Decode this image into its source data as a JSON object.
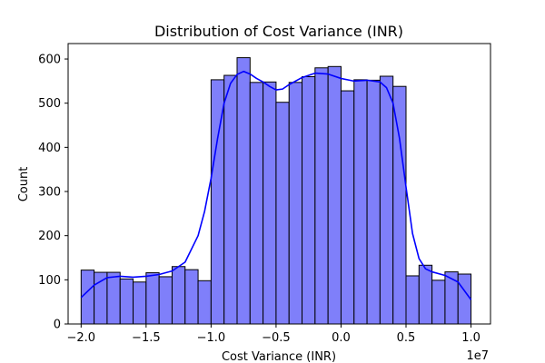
{
  "chart_data": {
    "type": "bar",
    "title": "Distribution of Cost Variance (INR)",
    "xlabel": "Cost Variance (INR)",
    "ylabel": "Count",
    "x_scale_label": "1e7",
    "xlim": [
      -2.1,
      1.15
    ],
    "ylim": [
      0,
      635
    ],
    "x_ticks": [
      -2.0,
      -1.5,
      -1.0,
      -0.5,
      0.0,
      0.5,
      1.0
    ],
    "x_tick_labels": [
      "−2.0",
      "−1.5",
      "−1.0",
      "−0.5",
      "0.0",
      "0.5",
      "1.0"
    ],
    "y_ticks": [
      0,
      100,
      200,
      300,
      400,
      500,
      600
    ],
    "y_tick_labels": [
      "0",
      "100",
      "200",
      "300",
      "400",
      "500",
      "600"
    ],
    "grid": false,
    "bin_start": -2.0,
    "bin_width": 0.1,
    "values": [
      122,
      117,
      117,
      102,
      95,
      116,
      107,
      130,
      123,
      98,
      553,
      563,
      603,
      547,
      548,
      502,
      547,
      560,
      580,
      583,
      528,
      553,
      552,
      561,
      538,
      109,
      133,
      99,
      118,
      113
    ],
    "kde": {
      "x": [
        -2.0,
        -1.9,
        -1.8,
        -1.7,
        -1.6,
        -1.5,
        -1.4,
        -1.3,
        -1.2,
        -1.1,
        -1.05,
        -1.0,
        -0.95,
        -0.9,
        -0.85,
        -0.8,
        -0.75,
        -0.7,
        -0.65,
        -0.6,
        -0.55,
        -0.5,
        -0.45,
        -0.4,
        -0.3,
        -0.2,
        -0.1,
        0.0,
        0.1,
        0.2,
        0.3,
        0.35,
        0.4,
        0.45,
        0.5,
        0.55,
        0.6,
        0.65,
        0.7,
        0.8,
        0.9,
        1.0
      ],
      "y": [
        60,
        88,
        105,
        108,
        106,
        108,
        112,
        120,
        140,
        200,
        255,
        330,
        420,
        500,
        545,
        565,
        572,
        566,
        556,
        548,
        538,
        530,
        532,
        542,
        558,
        568,
        566,
        556,
        550,
        552,
        548,
        535,
        500,
        420,
        310,
        205,
        148,
        125,
        118,
        110,
        95,
        55
      ]
    },
    "series": [
      {
        "bar_color": "#7f7ffa",
        "edge_color": "#000000",
        "line_color": "#0000ff"
      }
    ]
  }
}
